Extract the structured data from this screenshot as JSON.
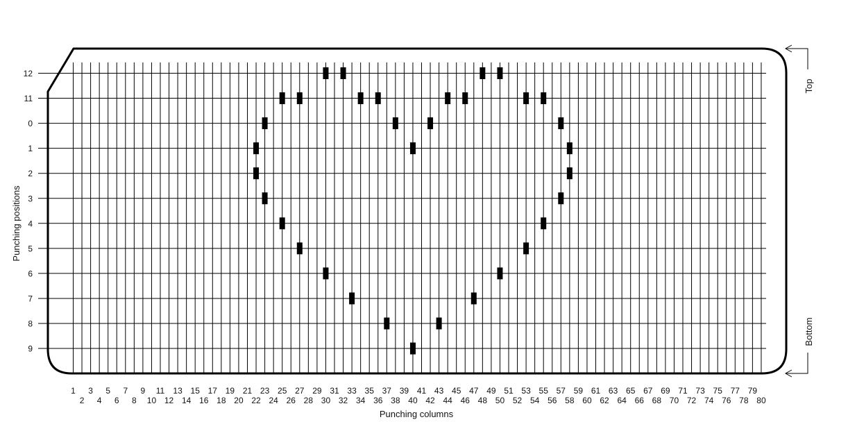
{
  "diagram": {
    "y_axis_label": "Punching positions",
    "x_axis_label": "Punching columns",
    "top_label": "Top",
    "bottom_label": "Bottom",
    "rows": [
      "12",
      "11",
      "0",
      "1",
      "2",
      "3",
      "4",
      "5",
      "6",
      "7",
      "8",
      "9"
    ],
    "column_count": 80,
    "colors": {
      "line": "#000000",
      "punch": "#000000",
      "background": "#ffffff"
    }
  },
  "chart_data": {
    "type": "scatter",
    "x_axis": "Punching columns",
    "y_axis": "Punching positions",
    "x_range": [
      1,
      80
    ],
    "y_categories": [
      "12",
      "11",
      "0",
      "1",
      "2",
      "3",
      "4",
      "5",
      "6",
      "7",
      "8",
      "9"
    ],
    "punches": [
      {
        "column": 30,
        "row": "12"
      },
      {
        "column": 32,
        "row": "12"
      },
      {
        "column": 48,
        "row": "12"
      },
      {
        "column": 50,
        "row": "12"
      },
      {
        "column": 25,
        "row": "11"
      },
      {
        "column": 27,
        "row": "11"
      },
      {
        "column": 34,
        "row": "11"
      },
      {
        "column": 36,
        "row": "11"
      },
      {
        "column": 44,
        "row": "11"
      },
      {
        "column": 46,
        "row": "11"
      },
      {
        "column": 53,
        "row": "11"
      },
      {
        "column": 55,
        "row": "11"
      },
      {
        "column": 23,
        "row": "0"
      },
      {
        "column": 38,
        "row": "0"
      },
      {
        "column": 42,
        "row": "0"
      },
      {
        "column": 57,
        "row": "0"
      },
      {
        "column": 22,
        "row": "1"
      },
      {
        "column": 40,
        "row": "1"
      },
      {
        "column": 58,
        "row": "1"
      },
      {
        "column": 22,
        "row": "2"
      },
      {
        "column": 58,
        "row": "2"
      },
      {
        "column": 23,
        "row": "3"
      },
      {
        "column": 57,
        "row": "3"
      },
      {
        "column": 25,
        "row": "4"
      },
      {
        "column": 55,
        "row": "4"
      },
      {
        "column": 27,
        "row": "5"
      },
      {
        "column": 53,
        "row": "5"
      },
      {
        "column": 30,
        "row": "6"
      },
      {
        "column": 50,
        "row": "6"
      },
      {
        "column": 33,
        "row": "7"
      },
      {
        "column": 47,
        "row": "7"
      },
      {
        "column": 37,
        "row": "8"
      },
      {
        "column": 43,
        "row": "8"
      },
      {
        "column": 40,
        "row": "9"
      }
    ]
  }
}
